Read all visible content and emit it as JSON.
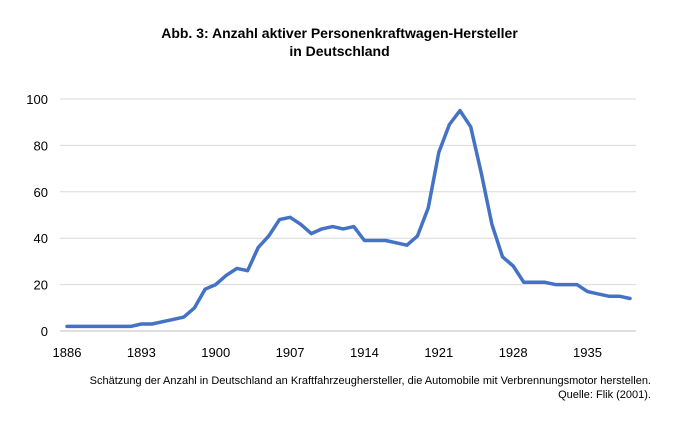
{
  "chart_data": {
    "type": "line",
    "title_line1": "Abb. 3: Anzahl aktiver Personenkraftwagen-Hersteller",
    "title_line2": "in Deutschland",
    "xlabel": "",
    "ylabel": "",
    "ylim": [
      0,
      100
    ],
    "xlim": [
      1886,
      1939
    ],
    "y_ticks": [
      0,
      20,
      40,
      60,
      80,
      100
    ],
    "x_ticks": [
      1886,
      1893,
      1900,
      1907,
      1914,
      1921,
      1928,
      1935
    ],
    "grid": true,
    "line_color": "#4472C4",
    "series": [
      {
        "x": [
          1886,
          1887,
          1888,
          1889,
          1890,
          1891,
          1892,
          1893,
          1894,
          1895,
          1896,
          1897,
          1898,
          1899,
          1900,
          1901,
          1902,
          1903,
          1904,
          1905,
          1906,
          1907,
          1908,
          1909,
          1910,
          1911,
          1912,
          1913,
          1914,
          1915,
          1916,
          1917,
          1918,
          1919,
          1920,
          1921,
          1922,
          1923,
          1924,
          1925,
          1926,
          1927,
          1928,
          1929,
          1930,
          1931,
          1932,
          1933,
          1934,
          1935,
          1936,
          1937,
          1938,
          1939
        ],
        "values": [
          2,
          2,
          2,
          2,
          2,
          2,
          2,
          3,
          3,
          4,
          5,
          6,
          10,
          18,
          20,
          24,
          27,
          26,
          36,
          41,
          48,
          49,
          46,
          42,
          44,
          45,
          44,
          45,
          39,
          39,
          39,
          38,
          37,
          41,
          53,
          77,
          89,
          95,
          88,
          68,
          46,
          32,
          28,
          21,
          21,
          21,
          20,
          20,
          20,
          17,
          16,
          15,
          15,
          14
        ]
      }
    ],
    "footnote_line1": "Schätzung der Anzahl in Deutschland an Kraftfahrzeughersteller, die Automobile mit Verbrennungsmotor herstellen.",
    "footnote_line2": "Quelle: Flik (2001)."
  }
}
